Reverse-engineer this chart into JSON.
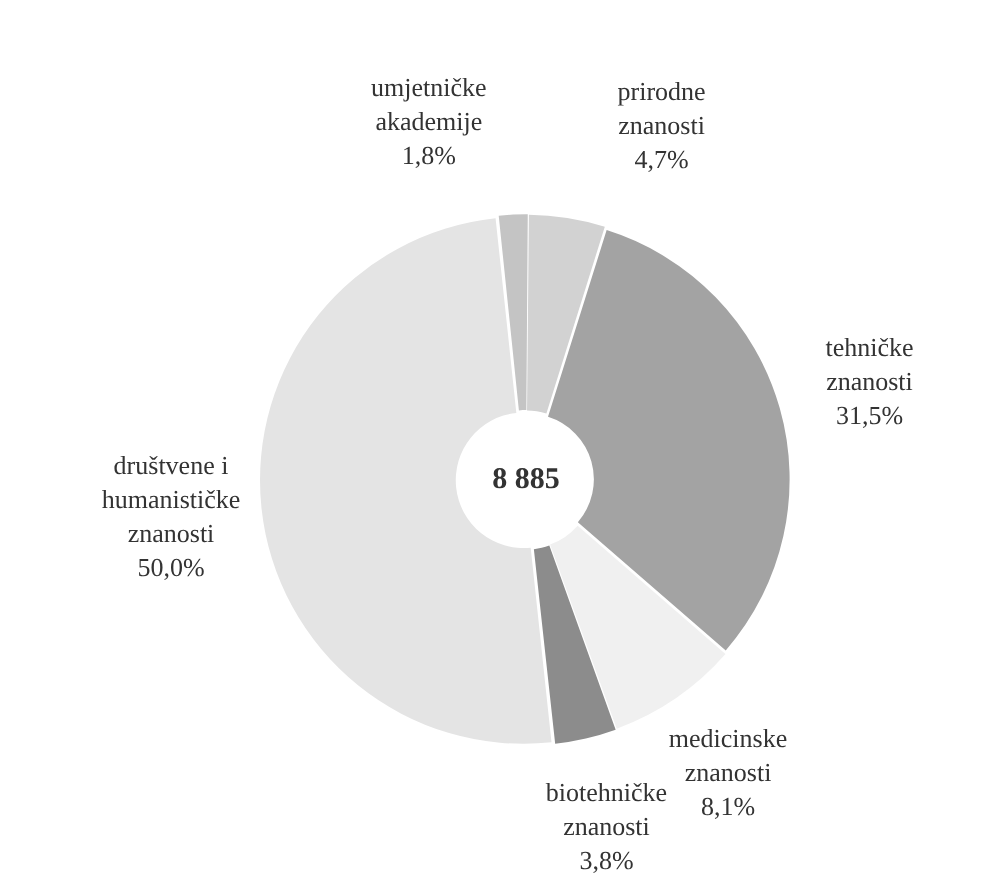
{
  "chart_data": {
    "type": "donut",
    "categories": [
      "umjetničke akademije",
      "prirodne znanosti",
      "tehničke znanosti",
      "medicinske znanosti",
      "biotehničke znanosti",
      "društvene i humanističke znanosti"
    ],
    "values": [
      1.8,
      4.7,
      31.5,
      8.1,
      3.8,
      50.0
    ],
    "value_labels": [
      "1,8%",
      "4,7%",
      "31,5%",
      "8,1%",
      "3,8%",
      "50,0%"
    ],
    "colors": [
      "#c4c4c4",
      "#d2d2d2",
      "#a3a3a3",
      "#f0f0f0",
      "#8c8c8c",
      "#e4e4e4"
    ],
    "annotations": [
      "8 885"
    ],
    "legend": false
  }
}
